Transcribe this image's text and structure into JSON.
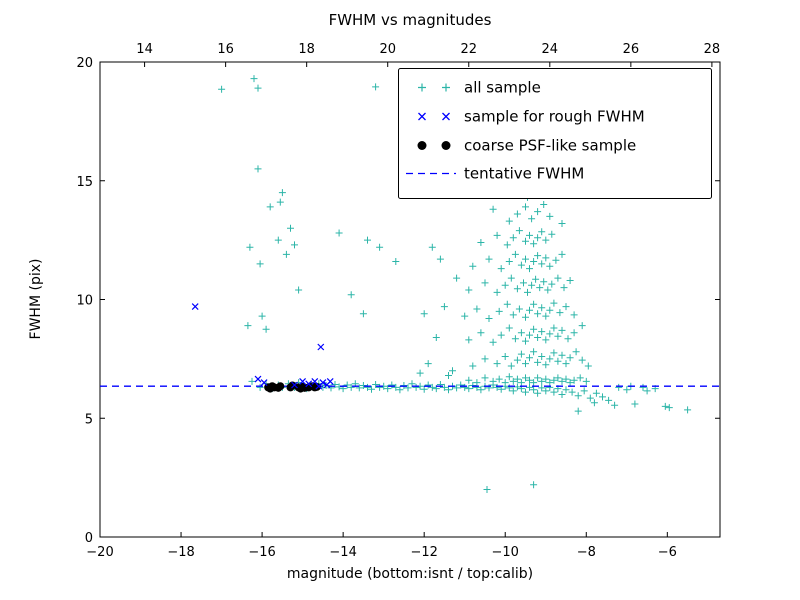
{
  "chart_data": {
    "type": "scatter",
    "title": "FWHM vs magnitudes",
    "xlabel": "magnitude (bottom:isnt / top:calib)",
    "ylabel": "FWHM (pix)",
    "xlim": [
      -20,
      -4.7
    ],
    "ylim": [
      0,
      20
    ],
    "x_ticks_bottom": [
      -20,
      -18,
      -16,
      -14,
      -12,
      -10,
      -8,
      -6
    ],
    "x_ticks_top": [
      14,
      16,
      18,
      20,
      22,
      24,
      26,
      28
    ],
    "top_axis_offset": 32.9,
    "y_ticks": [
      0,
      5,
      10,
      15,
      20
    ],
    "grid": false,
    "legend_position": "upper right",
    "colors": {
      "all_sample": "#2cb5a8",
      "rough_fwhm": "#0000ff",
      "coarse_psf": "#000000",
      "tentative_line": "#0000ff"
    },
    "series": [
      {
        "name": "all sample",
        "marker": "plus",
        "color": "#2cb5a8",
        "points": [
          [
            -16.25,
            6.55
          ],
          [
            -16.05,
            6.3
          ],
          [
            -15.9,
            6.45
          ],
          [
            -15.75,
            6.25
          ],
          [
            -15.6,
            6.4
          ],
          [
            -15.5,
            6.3
          ],
          [
            -15.35,
            6.45
          ],
          [
            -15.2,
            6.3
          ],
          [
            -15.1,
            6.5
          ],
          [
            -15.0,
            6.35
          ],
          [
            -14.9,
            6.25
          ],
          [
            -14.8,
            6.4
          ],
          [
            -14.7,
            6.3
          ],
          [
            -14.6,
            6.45
          ],
          [
            -14.5,
            6.3
          ],
          [
            -14.42,
            6.38
          ],
          [
            -14.3,
            6.28
          ],
          [
            -14.2,
            6.42
          ],
          [
            -14.1,
            6.32
          ],
          [
            -14.0,
            6.25
          ],
          [
            -13.9,
            6.4
          ],
          [
            -13.8,
            6.3
          ],
          [
            -13.7,
            6.45
          ],
          [
            -13.6,
            6.28
          ],
          [
            -13.5,
            6.38
          ],
          [
            -13.4,
            6.3
          ],
          [
            -13.3,
            6.22
          ],
          [
            -13.2,
            6.42
          ],
          [
            -13.1,
            6.3
          ],
          [
            -13.0,
            6.35
          ],
          [
            -12.9,
            6.25
          ],
          [
            -12.8,
            6.4
          ],
          [
            -12.7,
            6.3
          ],
          [
            -12.6,
            6.2
          ],
          [
            -12.5,
            6.38
          ],
          [
            -12.4,
            6.28
          ],
          [
            -12.3,
            6.45
          ],
          [
            -12.2,
            6.3
          ],
          [
            -12.1,
            6.35
          ],
          [
            -12.0,
            6.22
          ],
          [
            -11.9,
            6.4
          ],
          [
            -11.8,
            6.3
          ],
          [
            -11.7,
            6.25
          ],
          [
            -11.6,
            6.42
          ],
          [
            -11.5,
            6.3
          ],
          [
            -11.4,
            6.2
          ],
          [
            -11.3,
            6.35
          ],
          [
            -11.2,
            6.28
          ],
          [
            -11.1,
            6.4
          ],
          [
            -11.0,
            6.3
          ],
          [
            -10.9,
            6.25
          ],
          [
            -10.8,
            6.38
          ],
          [
            -10.7,
            6.3
          ],
          [
            -10.6,
            6.2
          ],
          [
            -10.5,
            6.35
          ],
          [
            -10.4,
            6.28
          ],
          [
            -10.3,
            6.4
          ],
          [
            -10.2,
            6.3
          ],
          [
            -10.1,
            6.22
          ],
          [
            -10.0,
            6.35
          ],
          [
            -9.9,
            6.28
          ],
          [
            -9.8,
            6.15
          ],
          [
            -9.7,
            6.32
          ],
          [
            -9.6,
            6.25
          ],
          [
            -9.5,
            6.1
          ],
          [
            -9.4,
            6.3
          ],
          [
            -9.3,
            6.2
          ],
          [
            -9.2,
            6.05
          ],
          [
            -9.1,
            6.28
          ],
          [
            -9.0,
            6.15
          ],
          [
            -8.9,
            6.3
          ],
          [
            -8.8,
            6.1
          ],
          [
            -8.7,
            6.25
          ],
          [
            -8.6,
            6.0
          ],
          [
            -8.5,
            6.2
          ],
          [
            -8.35,
            6.1
          ],
          [
            -8.2,
            5.95
          ],
          [
            -8.05,
            6.15
          ],
          [
            -7.9,
            5.85
          ],
          [
            -7.75,
            6.05
          ],
          [
            -7.6,
            5.9
          ],
          [
            -7.45,
            5.75
          ],
          [
            -7.2,
            6.3
          ],
          [
            -7.0,
            6.2
          ],
          [
            -6.8,
            5.6
          ],
          [
            -6.6,
            6.3
          ],
          [
            -6.3,
            6.25
          ],
          [
            -5.95,
            5.45
          ],
          [
            -5.5,
            5.35
          ],
          [
            -10.9,
            6.6
          ],
          [
            -10.7,
            6.5
          ],
          [
            -10.5,
            6.7
          ],
          [
            -10.3,
            6.55
          ],
          [
            -10.15,
            6.65
          ],
          [
            -10.0,
            6.5
          ],
          [
            -9.9,
            6.75
          ],
          [
            -9.8,
            6.55
          ],
          [
            -9.7,
            6.65
          ],
          [
            -9.6,
            6.5
          ],
          [
            -9.5,
            6.7
          ],
          [
            -9.4,
            6.6
          ],
          [
            -9.3,
            6.5
          ],
          [
            -9.2,
            6.7
          ],
          [
            -9.1,
            6.55
          ],
          [
            -9.0,
            6.65
          ],
          [
            -8.9,
            6.5
          ],
          [
            -8.8,
            6.6
          ],
          [
            -8.7,
            6.7
          ],
          [
            -8.6,
            6.55
          ],
          [
            -8.5,
            6.65
          ],
          [
            -8.4,
            6.5
          ],
          [
            -8.3,
            6.6
          ],
          [
            -8.15,
            6.7
          ],
          [
            -8.0,
            6.55
          ],
          [
            -10.8,
            7.2
          ],
          [
            -10.5,
            7.5
          ],
          [
            -10.2,
            7.3
          ],
          [
            -10.0,
            7.6
          ],
          [
            -9.85,
            7.2
          ],
          [
            -9.7,
            7.45
          ],
          [
            -9.6,
            7.7
          ],
          [
            -9.5,
            7.3
          ],
          [
            -9.4,
            7.55
          ],
          [
            -9.3,
            7.8
          ],
          [
            -9.2,
            7.35
          ],
          [
            -9.1,
            7.6
          ],
          [
            -9.0,
            7.25
          ],
          [
            -8.9,
            7.5
          ],
          [
            -8.8,
            7.75
          ],
          [
            -8.7,
            7.4
          ],
          [
            -8.6,
            7.65
          ],
          [
            -8.5,
            7.3
          ],
          [
            -8.4,
            7.55
          ],
          [
            -8.25,
            7.8
          ],
          [
            -8.1,
            7.45
          ],
          [
            -7.95,
            7.2
          ],
          [
            -10.9,
            8.3
          ],
          [
            -10.6,
            8.6
          ],
          [
            -10.3,
            8.2
          ],
          [
            -10.1,
            8.5
          ],
          [
            -9.9,
            8.8
          ],
          [
            -9.75,
            8.35
          ],
          [
            -9.6,
            8.6
          ],
          [
            -9.5,
            8.25
          ],
          [
            -9.4,
            8.5
          ],
          [
            -9.3,
            8.75
          ],
          [
            -9.2,
            8.4
          ],
          [
            -9.1,
            8.65
          ],
          [
            -9.0,
            8.3
          ],
          [
            -8.9,
            8.55
          ],
          [
            -8.8,
            8.8
          ],
          [
            -8.7,
            8.45
          ],
          [
            -8.6,
            8.7
          ],
          [
            -8.45,
            8.35
          ],
          [
            -8.3,
            8.6
          ],
          [
            -8.1,
            8.9
          ],
          [
            -11.0,
            9.3
          ],
          [
            -10.7,
            9.6
          ],
          [
            -10.4,
            9.2
          ],
          [
            -10.15,
            9.5
          ],
          [
            -9.95,
            9.8
          ],
          [
            -9.8,
            9.35
          ],
          [
            -9.65,
            9.6
          ],
          [
            -9.5,
            9.25
          ],
          [
            -9.4,
            9.55
          ],
          [
            -9.3,
            9.8
          ],
          [
            -9.2,
            9.4
          ],
          [
            -9.1,
            9.65
          ],
          [
            -9.0,
            9.3
          ],
          [
            -8.9,
            9.55
          ],
          [
            -8.8,
            9.85
          ],
          [
            -8.65,
            9.45
          ],
          [
            -8.5,
            9.7
          ],
          [
            -8.3,
            9.35
          ],
          [
            -10.9,
            10.4
          ],
          [
            -10.5,
            10.7
          ],
          [
            -10.2,
            10.3
          ],
          [
            -10.0,
            10.6
          ],
          [
            -9.85,
            10.9
          ],
          [
            -9.7,
            10.45
          ],
          [
            -9.55,
            10.7
          ],
          [
            -9.45,
            10.3
          ],
          [
            -9.35,
            10.6
          ],
          [
            -9.25,
            10.85
          ],
          [
            -9.15,
            10.5
          ],
          [
            -9.05,
            10.75
          ],
          [
            -8.95,
            10.4
          ],
          [
            -8.85,
            10.65
          ],
          [
            -8.7,
            10.9
          ],
          [
            -8.55,
            10.5
          ],
          [
            -8.4,
            10.8
          ],
          [
            -10.8,
            11.4
          ],
          [
            -10.4,
            11.7
          ],
          [
            -10.1,
            11.3
          ],
          [
            -9.9,
            11.6
          ],
          [
            -9.75,
            11.9
          ],
          [
            -9.6,
            11.45
          ],
          [
            -9.5,
            11.7
          ],
          [
            -9.4,
            11.3
          ],
          [
            -9.3,
            11.6
          ],
          [
            -9.2,
            11.85
          ],
          [
            -9.1,
            11.5
          ],
          [
            -9.0,
            11.75
          ],
          [
            -8.9,
            11.4
          ],
          [
            -8.75,
            11.65
          ],
          [
            -8.6,
            11.9
          ],
          [
            -10.6,
            12.4
          ],
          [
            -10.2,
            12.7
          ],
          [
            -9.95,
            12.3
          ],
          [
            -9.8,
            12.6
          ],
          [
            -9.65,
            12.9
          ],
          [
            -9.5,
            12.45
          ],
          [
            -9.4,
            12.7
          ],
          [
            -9.3,
            12.35
          ],
          [
            -9.2,
            12.6
          ],
          [
            -9.1,
            12.85
          ],
          [
            -9.0,
            12.5
          ],
          [
            -8.85,
            12.75
          ],
          [
            -9.9,
            13.3
          ],
          [
            -9.7,
            13.6
          ],
          [
            -9.5,
            13.9
          ],
          [
            -9.35,
            13.4
          ],
          [
            -9.2,
            13.7
          ],
          [
            -9.05,
            14.0
          ],
          [
            -8.9,
            13.5
          ],
          [
            -9.45,
            14.3
          ],
          [
            -9.6,
            14.5
          ],
          [
            -10.3,
            13.8
          ],
          [
            -8.6,
            13.2
          ],
          [
            -12.1,
            6.9
          ],
          [
            -11.9,
            7.3
          ],
          [
            -11.7,
            8.4
          ],
          [
            -11.5,
            9.7
          ],
          [
            -11.6,
            11.7
          ],
          [
            -11.3,
            7.0
          ],
          [
            -11.2,
            10.9
          ],
          [
            -12.0,
            9.4
          ],
          [
            -11.8,
            12.2
          ],
          [
            -11.4,
            6.8
          ],
          [
            -17.0,
            18.85
          ],
          [
            -16.2,
            19.3
          ],
          [
            -16.1,
            18.9
          ],
          [
            -13.2,
            18.95
          ],
          [
            -16.1,
            15.5
          ],
          [
            -15.5,
            14.5
          ],
          [
            -15.55,
            14.1
          ],
          [
            -15.8,
            13.9
          ],
          [
            -15.3,
            13.0
          ],
          [
            -15.6,
            12.5
          ],
          [
            -16.3,
            12.2
          ],
          [
            -16.05,
            11.5
          ],
          [
            -15.4,
            11.9
          ],
          [
            -15.2,
            12.3
          ],
          [
            -16.35,
            8.9
          ],
          [
            -16.0,
            9.3
          ],
          [
            -15.9,
            8.75
          ],
          [
            -15.1,
            10.4
          ],
          [
            -13.4,
            12.5
          ],
          [
            -13.1,
            12.2
          ],
          [
            -13.5,
            9.4
          ],
          [
            -12.7,
            11.6
          ],
          [
            -13.8,
            10.2
          ],
          [
            -14.1,
            12.8
          ],
          [
            -10.45,
            2.0
          ],
          [
            -9.3,
            2.2
          ],
          [
            -8.2,
            5.3
          ],
          [
            -7.8,
            5.65
          ],
          [
            -7.3,
            5.55
          ],
          [
            -6.9,
            6.35
          ],
          [
            -6.5,
            6.15
          ],
          [
            -6.05,
            5.5
          ]
        ]
      },
      {
        "name": "sample for rough FWHM",
        "marker": "x",
        "color": "#0000ff",
        "points": [
          [
            -17.65,
            9.7
          ],
          [
            -16.1,
            6.65
          ],
          [
            -15.95,
            6.5
          ],
          [
            -15.2,
            6.4
          ],
          [
            -15.0,
            6.55
          ],
          [
            -14.85,
            6.45
          ],
          [
            -14.7,
            6.55
          ],
          [
            -14.6,
            6.35
          ],
          [
            -14.55,
            8.0
          ],
          [
            -14.5,
            6.5
          ],
          [
            -14.4,
            6.4
          ],
          [
            -14.32,
            6.55
          ]
        ]
      },
      {
        "name": "coarse PSF-like sample",
        "marker": "circle",
        "color": "#000000",
        "points": [
          [
            -15.85,
            6.3
          ],
          [
            -15.8,
            6.25
          ],
          [
            -15.75,
            6.35
          ],
          [
            -15.7,
            6.3
          ],
          [
            -15.6,
            6.28
          ],
          [
            -15.55,
            6.35
          ],
          [
            -15.3,
            6.3
          ],
          [
            -15.25,
            6.38
          ],
          [
            -15.1,
            6.3
          ],
          [
            -15.05,
            6.25
          ],
          [
            -15.0,
            6.32
          ],
          [
            -14.95,
            6.28
          ],
          [
            -14.85,
            6.3
          ],
          [
            -14.75,
            6.35
          ],
          [
            -14.7,
            6.3
          ],
          [
            -14.65,
            6.32
          ]
        ]
      }
    ],
    "lines": [
      {
        "name": "tentative FWHM",
        "style": "dashed",
        "color": "#0000ff",
        "y": 6.35
      }
    ],
    "legend": {
      "entries": [
        "all sample",
        "sample for rough FWHM",
        "coarse PSF-like sample",
        "tentative FWHM"
      ]
    }
  }
}
